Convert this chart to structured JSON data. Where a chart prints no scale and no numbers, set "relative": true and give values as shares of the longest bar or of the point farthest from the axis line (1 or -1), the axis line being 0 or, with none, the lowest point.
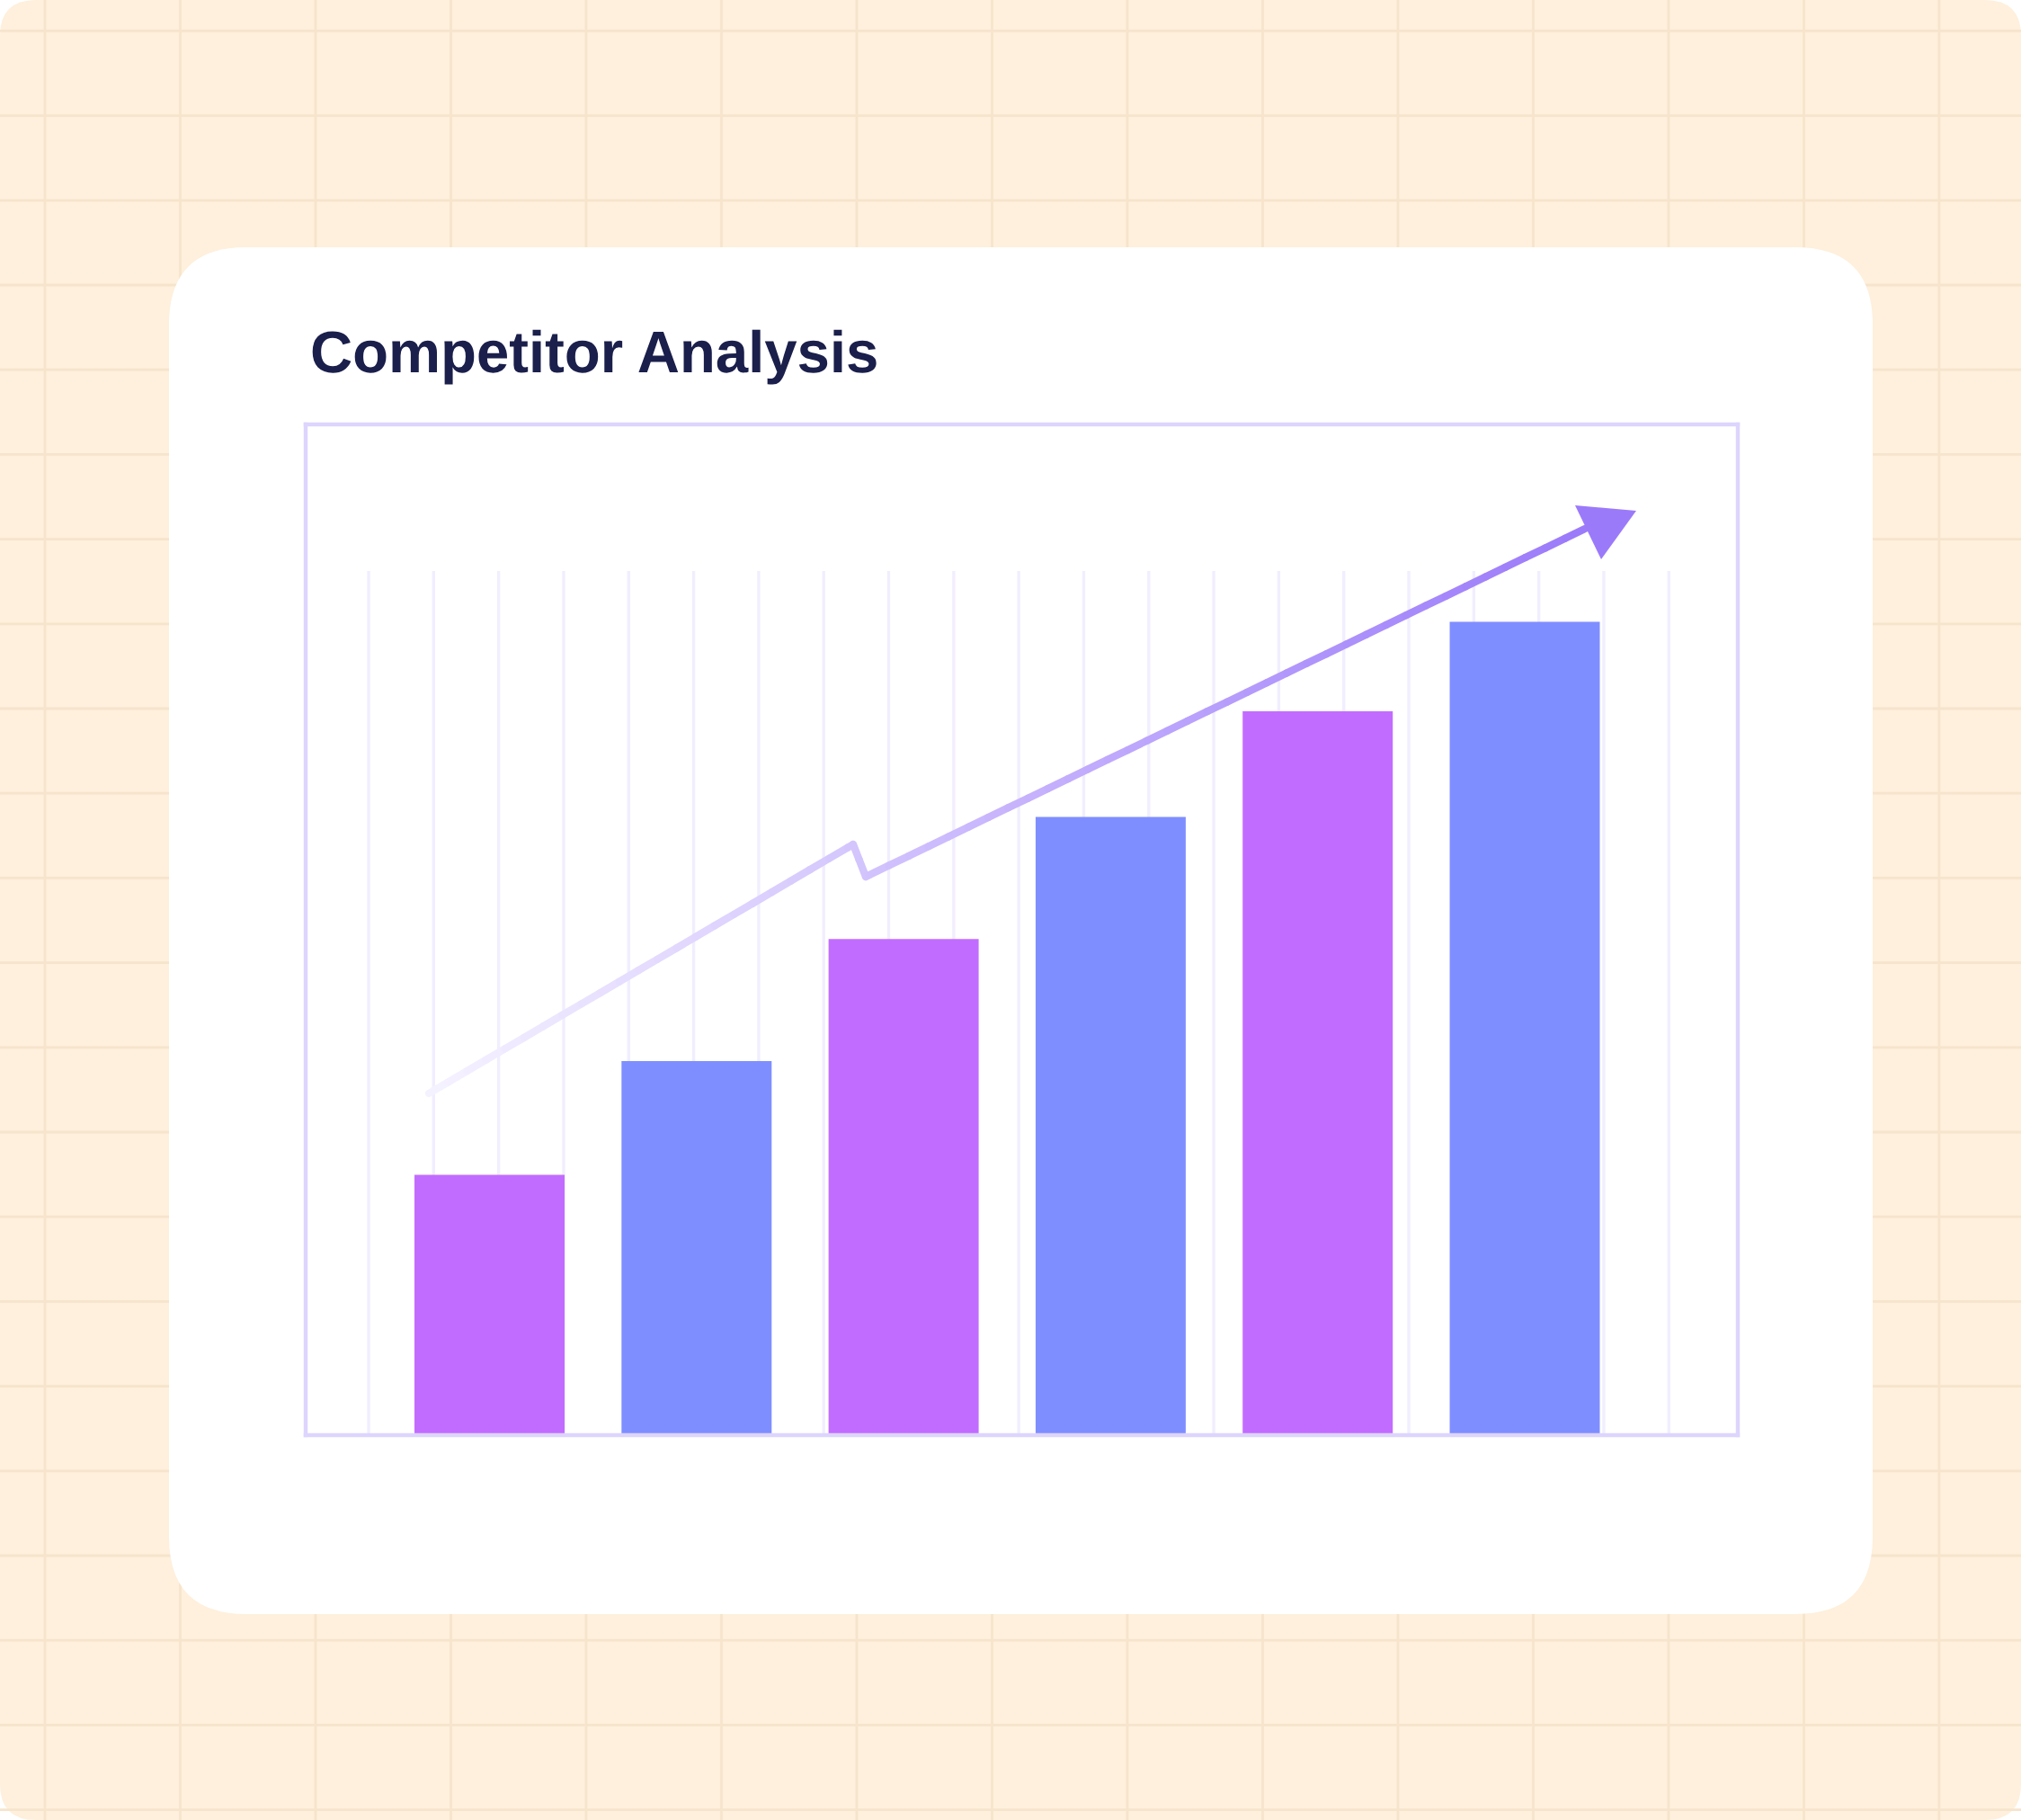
{
  "chart_data": {
    "type": "bar",
    "title": "Competitor Analysis",
    "categories": [
      null,
      null,
      null,
      null,
      null,
      null
    ],
    "values": [
      0.32,
      0.46,
      0.61,
      0.76,
      0.89,
      1
    ],
    "colors": [
      "#c26cff",
      "#7f8eff",
      "#c26cff",
      "#7f8eff",
      "#c26cff",
      "#7f8eff"
    ],
    "relative": true,
    "grid": "x"
  }
}
